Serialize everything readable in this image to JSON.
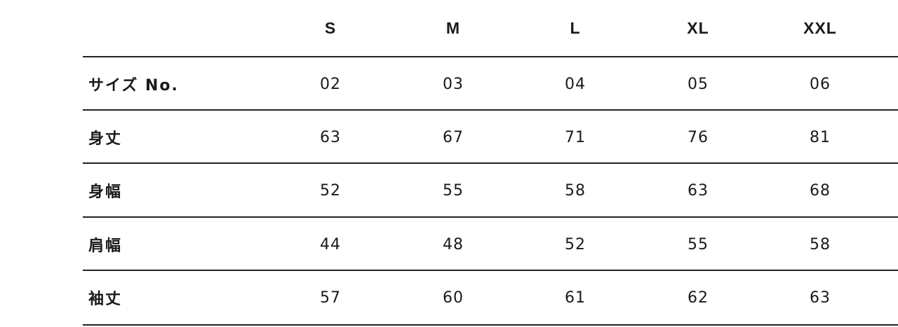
{
  "table": {
    "columns": [
      "S",
      "M",
      "L",
      "XL",
      "XXL"
    ],
    "rows": [
      {
        "label": "サイズ No.",
        "values": [
          "02",
          "03",
          "04",
          "05",
          "06"
        ]
      },
      {
        "label": "身丈",
        "values": [
          "63",
          "67",
          "71",
          "76",
          "81"
        ]
      },
      {
        "label": "身幅",
        "values": [
          "52",
          "55",
          "58",
          "63",
          "68"
        ]
      },
      {
        "label": "肩幅",
        "values": [
          "44",
          "48",
          "52",
          "55",
          "58"
        ]
      },
      {
        "label": "袖丈",
        "values": [
          "57",
          "60",
          "61",
          "62",
          "63"
        ]
      }
    ]
  }
}
